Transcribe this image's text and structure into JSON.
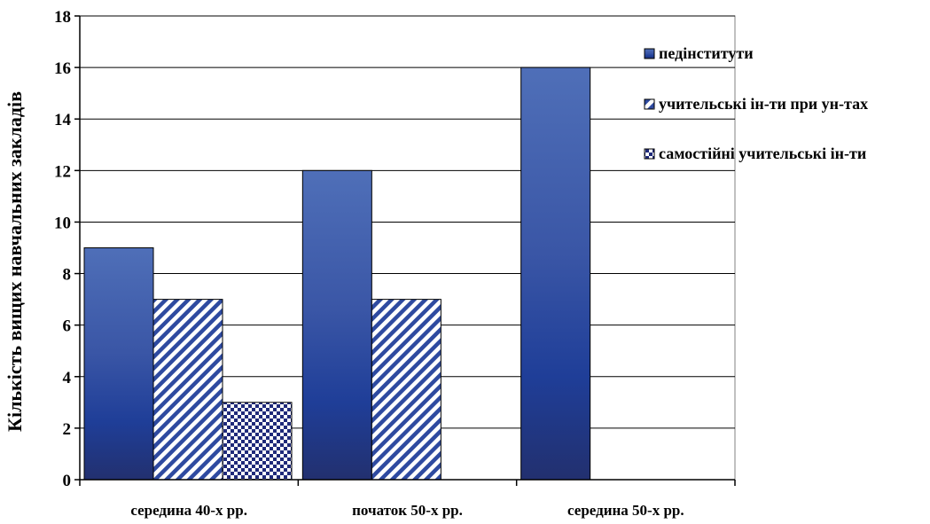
{
  "chart_data": {
    "type": "bar",
    "title": "",
    "xlabel": "",
    "ylabel": "Кількість вищих навчальних закладів",
    "categories": [
      "середина 40-х рр.",
      "початок 50-х рр.",
      "середина 50-х рр."
    ],
    "series": [
      {
        "name": "педінститути",
        "values": [
          9,
          12,
          16
        ],
        "color": "#3a56a6",
        "pattern": "gradient"
      },
      {
        "name": "учительські ін-ти при ун-тах",
        "values": [
          7,
          7,
          0
        ],
        "color": "#2e4aa0",
        "pattern": "diagonal-stripes"
      },
      {
        "name": "самостійні учительські ін-ти",
        "values": [
          3,
          0,
          0
        ],
        "color": "#1f2a7a",
        "pattern": "checkerboard"
      }
    ],
    "ylim": [
      0,
      18
    ],
    "yticks": [
      0,
      2,
      4,
      6,
      8,
      10,
      12,
      14,
      16,
      18
    ],
    "grid": true,
    "legend_position": "right"
  }
}
